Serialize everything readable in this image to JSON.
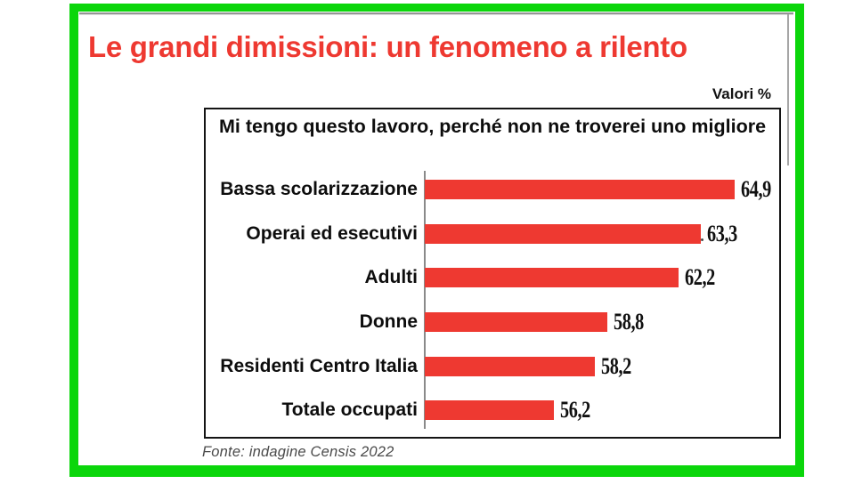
{
  "page": {
    "title": "Le grandi dimissioni: un fenomeno a rilento",
    "units_label": "Valori %",
    "source": "Fonte: indagine Censis 2022"
  },
  "colors": {
    "frame_green": "#0bd60b",
    "accent_red": "#ee3931",
    "axis_gray": "#8a8a8a",
    "box_border": "#141414",
    "rule_gray": "#959595",
    "source_gray": "#4a4a4a"
  },
  "chart_data": {
    "type": "bar",
    "orientation": "horizontal",
    "title": "Mi tengo questo lavoro, perché non ne troverei uno migliore",
    "categories": [
      "Bassa scolarizzazione",
      "Operai ed esecutivi",
      "Adulti",
      "Donne",
      "Residenti Centro Italia",
      "Totale occupati"
    ],
    "values": [
      64.9,
      63.3,
      62.2,
      58.8,
      58.2,
      56.2
    ],
    "value_labels": [
      "64,9",
      "63,3",
      "62,2",
      "58,8",
      "58,2",
      "56,2"
    ],
    "unit": "Valori %",
    "xlim": [
      50,
      65
    ],
    "grid": false,
    "legend": false,
    "bar_color": "#ee3931"
  }
}
